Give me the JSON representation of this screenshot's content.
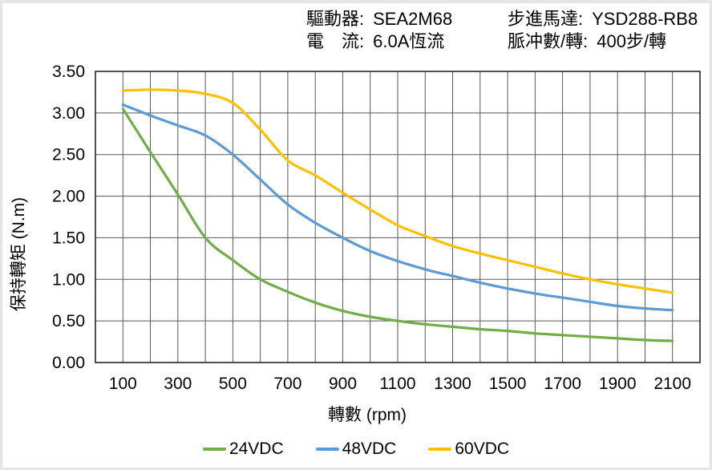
{
  "header": {
    "driver_label": "驅動器:",
    "driver_value": "SEA2M68",
    "current_label": "電　流:",
    "current_value": "6.0A恆流",
    "motor_label": "步進馬達:",
    "motor_value": "YSD288-RB8",
    "pulses_label": "脈冲數/轉:",
    "pulses_value": "400步/轉"
  },
  "chart_data": {
    "type": "line",
    "xlabel": "轉數 (rpm)",
    "ylabel": "保持轉矩 (N.m)",
    "xlim": [
      0,
      2200
    ],
    "ylim": [
      0,
      3.5
    ],
    "grid": true,
    "x_grid_step": 100,
    "y_grid_step": 0.5,
    "legend_position": "bottom",
    "x_ticks": [
      "100",
      "300",
      "500",
      "700",
      "900",
      "1100",
      "1300",
      "1500",
      "1700",
      "1900",
      "2100"
    ],
    "x_tick_values": [
      100,
      300,
      500,
      700,
      900,
      1100,
      1300,
      1500,
      1700,
      1900,
      2100
    ],
    "y_ticks": [
      "3.50",
      "3.00",
      "2.50",
      "2.00",
      "1.50",
      "1.00",
      "0.50",
      "0.00"
    ],
    "y_tick_values": [
      3.5,
      3.0,
      2.5,
      2.0,
      1.5,
      1.0,
      0.5,
      0.0
    ],
    "x": [
      100,
      200,
      300,
      400,
      500,
      600,
      700,
      800,
      900,
      1000,
      1100,
      1200,
      1300,
      1400,
      1500,
      1600,
      1700,
      1800,
      1900,
      2000,
      2100
    ],
    "series": [
      {
        "name": "24VDC",
        "color": "#70AD47",
        "values": [
          3.05,
          2.53,
          2.02,
          1.5,
          1.23,
          1.0,
          0.85,
          0.72,
          0.62,
          0.55,
          0.5,
          0.46,
          0.43,
          0.4,
          0.38,
          0.35,
          0.33,
          0.31,
          0.29,
          0.27,
          0.26
        ]
      },
      {
        "name": "48VDC",
        "color": "#5B9BD5",
        "values": [
          3.1,
          2.97,
          2.85,
          2.73,
          2.5,
          2.2,
          1.9,
          1.68,
          1.5,
          1.34,
          1.22,
          1.12,
          1.04,
          0.96,
          0.89,
          0.83,
          0.78,
          0.73,
          0.68,
          0.65,
          0.63
        ]
      },
      {
        "name": "60VDC",
        "color": "#FFC000",
        "values": [
          3.27,
          3.28,
          3.27,
          3.23,
          3.12,
          2.8,
          2.43,
          2.25,
          2.04,
          1.84,
          1.65,
          1.52,
          1.4,
          1.31,
          1.23,
          1.15,
          1.07,
          1.0,
          0.94,
          0.89,
          0.84
        ]
      }
    ]
  },
  "colors": {
    "grid": "#595959",
    "axis_frame": "#262626",
    "text": "#000000",
    "page_edge": "#e5e5e5"
  }
}
